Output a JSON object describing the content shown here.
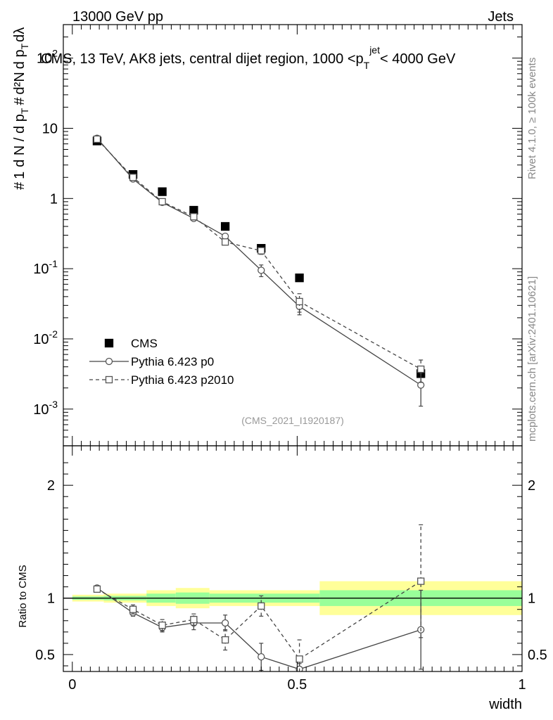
{
  "header": {
    "energy": "13000 GeV pp",
    "category": "Jets",
    "plot_title": "CMS, 13 TeV, AK8 jets, central dijet region, 1000 <p_T^{jet}< 4000 GeV"
  },
  "side_labels": {
    "rivet": "Rivet 4.1.0, ≥ 100k events",
    "source": "mcplots.cern.ch [arXiv:2401.10621]"
  },
  "watermark": "(CMS_2021_I1920187)",
  "chart_data": [
    {
      "type": "line",
      "panel": "main",
      "scale": "log",
      "ylabel": "(1/dN/dp_T) d²N/dp_T dλ",
      "ylim": [
        0.0003,
        300
      ],
      "xlim": [
        -0.02,
        1.0
      ],
      "y_tick_labels": [
        "10^-3",
        "10^-2",
        "10^-1",
        "1",
        "10",
        "10^2"
      ],
      "legend": [
        "CMS",
        "Pythia 6.423 p0",
        "Pythia 6.423 p2010"
      ],
      "legend_position": "lower-left",
      "series": [
        {
          "name": "CMS",
          "style": "filled-square",
          "x": [
            0.055,
            0.135,
            0.2,
            0.27,
            0.34,
            0.42,
            0.505,
            0.775
          ],
          "values": [
            6.6,
            2.2,
            1.25,
            0.68,
            0.4,
            0.195,
            0.074,
            0.0032
          ]
        },
        {
          "name": "Pythia 6.423 p0",
          "style": "open-circle-solid",
          "x": [
            0.055,
            0.135,
            0.2,
            0.27,
            0.34,
            0.42,
            0.505,
            0.775
          ],
          "values": [
            7.2,
            1.9,
            0.88,
            0.52,
            0.29,
            0.095,
            0.029,
            0.0022
          ],
          "err_low": [
            0.3,
            0.1,
            0.05,
            0.03,
            0.02,
            0.018,
            0.007,
            0.0011
          ],
          "err_high": [
            0.3,
            0.1,
            0.05,
            0.03,
            0.02,
            0.018,
            0.007,
            0.0011
          ]
        },
        {
          "name": "Pythia 6.423 p2010",
          "style": "open-square-dashed",
          "x": [
            0.055,
            0.135,
            0.2,
            0.27,
            0.34,
            0.42,
            0.505,
            0.775
          ],
          "values": [
            7.0,
            2.0,
            0.9,
            0.55,
            0.24,
            0.18,
            0.034,
            0.0037
          ],
          "err_low": [
            0.3,
            0.1,
            0.05,
            0.03,
            0.02,
            0.02,
            0.01,
            0.0013
          ],
          "err_high": [
            0.3,
            0.1,
            0.05,
            0.03,
            0.02,
            0.02,
            0.01,
            0.0013
          ]
        }
      ]
    },
    {
      "type": "line",
      "panel": "ratio",
      "xlabel": "width",
      "ylabel": "Ratio to CMS",
      "ylim": [
        0.35,
        2.35
      ],
      "xlim": [
        -0.02,
        1.0
      ],
      "x_tick_labels": [
        "0",
        "0.5",
        "1"
      ],
      "y_tick_labels": [
        "0.5",
        "1",
        "2"
      ],
      "bands": [
        {
          "x0": 0.0,
          "x1": 0.07,
          "green_low": 0.985,
          "green_high": 1.015,
          "yellow_low": 0.97,
          "yellow_high": 1.03
        },
        {
          "x0": 0.07,
          "x1": 0.165,
          "green_low": 0.98,
          "green_high": 1.02,
          "yellow_low": 0.96,
          "yellow_high": 1.04
        },
        {
          "x0": 0.165,
          "x1": 0.23,
          "green_low": 0.96,
          "green_high": 1.04,
          "yellow_low": 0.93,
          "yellow_high": 1.07
        },
        {
          "x0": 0.23,
          "x1": 0.305,
          "green_low": 0.95,
          "green_high": 1.05,
          "yellow_low": 0.91,
          "yellow_high": 1.09
        },
        {
          "x0": 0.305,
          "x1": 0.55,
          "green_low": 0.96,
          "green_high": 1.04,
          "yellow_low": 0.93,
          "yellow_high": 1.07
        },
        {
          "x0": 0.55,
          "x1": 1.0,
          "green_low": 0.93,
          "green_high": 1.07,
          "yellow_low": 0.85,
          "yellow_high": 1.15
        }
      ],
      "series": [
        {
          "name": "Pythia 6.423 p0",
          "style": "open-circle-solid",
          "x": [
            0.055,
            0.135,
            0.2,
            0.27,
            0.34,
            0.42,
            0.505,
            0.775
          ],
          "values": [
            1.09,
            0.87,
            0.74,
            0.78,
            0.78,
            0.48,
            0.37,
            0.72
          ],
          "err_low": [
            0.02,
            0.03,
            0.04,
            0.06,
            0.07,
            0.12,
            0.05,
            0.35
          ],
          "err_high": [
            0.02,
            0.03,
            0.04,
            0.06,
            0.07,
            0.12,
            0.05,
            0.35
          ]
        },
        {
          "name": "Pythia 6.423 p2010",
          "style": "open-square-dashed",
          "x": [
            0.055,
            0.135,
            0.2,
            0.27,
            0.34,
            0.42,
            0.505,
            0.775
          ],
          "values": [
            1.08,
            0.9,
            0.76,
            0.81,
            0.63,
            0.93,
            0.46,
            1.15
          ],
          "err_low": [
            0.02,
            0.04,
            0.05,
            0.05,
            0.09,
            0.09,
            0.17,
            0.5
          ],
          "err_high": [
            0.02,
            0.04,
            0.05,
            0.05,
            0.09,
            0.09,
            0.17,
            0.5
          ]
        }
      ]
    }
  ]
}
